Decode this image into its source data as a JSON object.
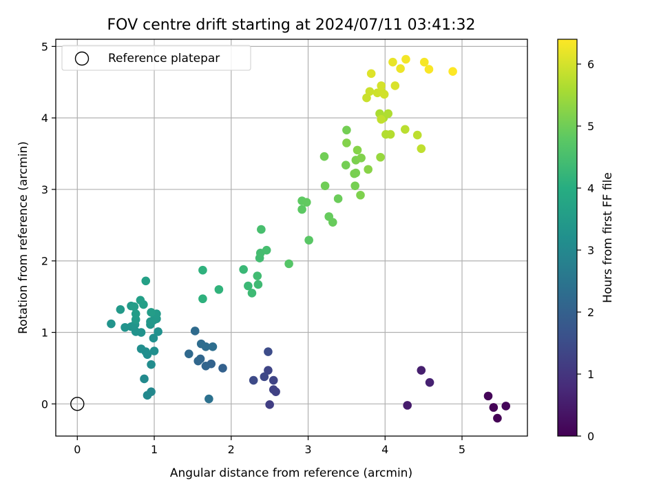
{
  "chart_data": {
    "type": "scatter",
    "title": "FOV centre drift starting at 2024/07/11 03:41:32",
    "xlabel": "Angular distance from reference (arcmin)",
    "ylabel": "Rotation from reference (arcmin)",
    "xlim": [
      -0.28,
      5.85
    ],
    "ylim": [
      -0.45,
      5.1
    ],
    "xticks": [
      0,
      1,
      2,
      3,
      4,
      5
    ],
    "yticks": [
      0,
      1,
      2,
      3,
      4,
      5
    ],
    "grid": true,
    "legend": {
      "placement": "top-left",
      "entries": [
        "Reference platepar"
      ]
    },
    "reference_point": {
      "x": 0,
      "y": 0,
      "label": "Reference platepar"
    },
    "colorbar": {
      "label": "Hours from first FF file",
      "colormap": "viridis",
      "range": [
        0,
        6.4
      ],
      "ticks": [
        0,
        1,
        2,
        3,
        4,
        5,
        6
      ]
    },
    "points": [
      {
        "x": 5.46,
        "y": -0.2,
        "c": 0.02
      },
      {
        "x": 5.41,
        "y": -0.05,
        "c": 0.05
      },
      {
        "x": 5.34,
        "y": 0.11,
        "c": 0.08
      },
      {
        "x": 5.57,
        "y": -0.03,
        "c": 0.1
      },
      {
        "x": 4.29,
        "y": -0.02,
        "c": 0.5
      },
      {
        "x": 4.47,
        "y": 0.47,
        "c": 0.55
      },
      {
        "x": 4.58,
        "y": 0.3,
        "c": 0.6
      },
      {
        "x": 2.5,
        "y": -0.01,
        "c": 1.2
      },
      {
        "x": 2.58,
        "y": 0.17,
        "c": 1.25
      },
      {
        "x": 2.55,
        "y": 0.2,
        "c": 1.28
      },
      {
        "x": 2.55,
        "y": 0.33,
        "c": 1.32
      },
      {
        "x": 2.48,
        "y": 0.47,
        "c": 1.35
      },
      {
        "x": 2.43,
        "y": 0.38,
        "c": 1.4
      },
      {
        "x": 2.29,
        "y": 0.33,
        "c": 1.45
      },
      {
        "x": 2.48,
        "y": 0.73,
        "c": 1.5
      },
      {
        "x": 1.89,
        "y": 0.5,
        "c": 2.0
      },
      {
        "x": 1.74,
        "y": 0.56,
        "c": 2.05
      },
      {
        "x": 1.67,
        "y": 0.53,
        "c": 2.1
      },
      {
        "x": 1.6,
        "y": 0.63,
        "c": 2.12
      },
      {
        "x": 1.57,
        "y": 0.6,
        "c": 2.15
      },
      {
        "x": 1.45,
        "y": 0.7,
        "c": 2.2
      },
      {
        "x": 1.53,
        "y": 1.02,
        "c": 2.25
      },
      {
        "x": 1.61,
        "y": 0.84,
        "c": 2.28
      },
      {
        "x": 1.67,
        "y": 0.8,
        "c": 2.3
      },
      {
        "x": 1.76,
        "y": 0.8,
        "c": 2.32
      },
      {
        "x": 1.71,
        "y": 0.07,
        "c": 2.4
      },
      {
        "x": 0.96,
        "y": 0.17,
        "c": 3.0
      },
      {
        "x": 0.91,
        "y": 0.12,
        "c": 3.02
      },
      {
        "x": 0.87,
        "y": 0.35,
        "c": 3.05
      },
      {
        "x": 0.96,
        "y": 0.55,
        "c": 3.1
      },
      {
        "x": 0.91,
        "y": 0.69,
        "c": 3.12
      },
      {
        "x": 0.89,
        "y": 0.73,
        "c": 3.14
      },
      {
        "x": 0.83,
        "y": 0.77,
        "c": 3.16
      },
      {
        "x": 1.0,
        "y": 0.74,
        "c": 3.18
      },
      {
        "x": 0.99,
        "y": 0.92,
        "c": 3.2
      },
      {
        "x": 1.05,
        "y": 1.01,
        "c": 3.22
      },
      {
        "x": 0.83,
        "y": 1.0,
        "c": 3.25
      },
      {
        "x": 0.76,
        "y": 1.01,
        "c": 3.27
      },
      {
        "x": 0.62,
        "y": 1.07,
        "c": 3.3
      },
      {
        "x": 0.7,
        "y": 1.08,
        "c": 3.32
      },
      {
        "x": 0.75,
        "y": 1.11,
        "c": 3.35
      },
      {
        "x": 0.95,
        "y": 1.11,
        "c": 3.37
      },
      {
        "x": 0.95,
        "y": 1.15,
        "c": 3.4
      },
      {
        "x": 0.99,
        "y": 1.17,
        "c": 3.42
      },
      {
        "x": 1.03,
        "y": 1.19,
        "c": 3.45
      },
      {
        "x": 1.03,
        "y": 1.26,
        "c": 3.47
      },
      {
        "x": 0.76,
        "y": 1.18,
        "c": 3.5
      },
      {
        "x": 0.76,
        "y": 1.26,
        "c": 3.52
      },
      {
        "x": 0.96,
        "y": 1.28,
        "c": 3.55
      },
      {
        "x": 0.44,
        "y": 1.12,
        "c": 3.3
      },
      {
        "x": 0.56,
        "y": 1.32,
        "c": 3.45
      },
      {
        "x": 0.7,
        "y": 1.37,
        "c": 3.5
      },
      {
        "x": 0.74,
        "y": 1.36,
        "c": 3.55
      },
      {
        "x": 0.82,
        "y": 1.45,
        "c": 3.6
      },
      {
        "x": 0.86,
        "y": 1.39,
        "c": 3.62
      },
      {
        "x": 0.89,
        "y": 1.72,
        "c": 3.65
      },
      {
        "x": 1.63,
        "y": 1.47,
        "c": 4.1
      },
      {
        "x": 1.63,
        "y": 1.87,
        "c": 4.12
      },
      {
        "x": 1.84,
        "y": 1.6,
        "c": 4.15
      },
      {
        "x": 2.16,
        "y": 1.88,
        "c": 4.3
      },
      {
        "x": 2.22,
        "y": 1.65,
        "c": 4.32
      },
      {
        "x": 2.27,
        "y": 1.55,
        "c": 4.35
      },
      {
        "x": 2.35,
        "y": 1.67,
        "c": 4.37
      },
      {
        "x": 2.34,
        "y": 1.79,
        "c": 4.4
      },
      {
        "x": 2.37,
        "y": 2.04,
        "c": 4.42
      },
      {
        "x": 2.38,
        "y": 2.11,
        "c": 4.45
      },
      {
        "x": 2.46,
        "y": 2.15,
        "c": 4.47
      },
      {
        "x": 2.39,
        "y": 2.44,
        "c": 4.5
      },
      {
        "x": 2.75,
        "y": 1.96,
        "c": 4.7
      },
      {
        "x": 3.01,
        "y": 2.29,
        "c": 4.75
      },
      {
        "x": 2.92,
        "y": 2.72,
        "c": 4.8
      },
      {
        "x": 2.92,
        "y": 2.84,
        "c": 4.82
      },
      {
        "x": 2.98,
        "y": 2.82,
        "c": 4.85
      },
      {
        "x": 3.27,
        "y": 2.62,
        "c": 4.9
      },
      {
        "x": 3.32,
        "y": 2.54,
        "c": 4.92
      },
      {
        "x": 3.39,
        "y": 2.87,
        "c": 4.95
      },
      {
        "x": 3.22,
        "y": 3.05,
        "c": 5.0
      },
      {
        "x": 3.21,
        "y": 3.46,
        "c": 5.02
      },
      {
        "x": 3.49,
        "y": 3.34,
        "c": 5.05
      },
      {
        "x": 3.61,
        "y": 3.05,
        "c": 5.07
      },
      {
        "x": 3.6,
        "y": 3.22,
        "c": 5.1
      },
      {
        "x": 3.62,
        "y": 3.41,
        "c": 5.12
      },
      {
        "x": 3.68,
        "y": 2.92,
        "c": 5.15
      },
      {
        "x": 3.69,
        "y": 3.44,
        "c": 5.17
      },
      {
        "x": 3.5,
        "y": 3.65,
        "c": 5.2
      },
      {
        "x": 3.64,
        "y": 3.55,
        "c": 5.22
      },
      {
        "x": 3.78,
        "y": 3.28,
        "c": 5.25
      },
      {
        "x": 3.62,
        "y": 3.23,
        "c": 5.1
      },
      {
        "x": 3.5,
        "y": 3.83,
        "c": 5.05
      },
      {
        "x": 3.94,
        "y": 3.45,
        "c": 5.4
      },
      {
        "x": 3.93,
        "y": 4.06,
        "c": 5.6
      },
      {
        "x": 3.98,
        "y": 4.0,
        "c": 5.62
      },
      {
        "x": 4.04,
        "y": 4.06,
        "c": 5.65
      },
      {
        "x": 4.01,
        "y": 3.77,
        "c": 5.68
      },
      {
        "x": 4.07,
        "y": 3.77,
        "c": 5.7
      },
      {
        "x": 4.26,
        "y": 3.84,
        "c": 5.75
      },
      {
        "x": 4.42,
        "y": 3.76,
        "c": 5.78
      },
      {
        "x": 4.47,
        "y": 3.57,
        "c": 5.8
      },
      {
        "x": 3.95,
        "y": 3.98,
        "c": 5.82
      },
      {
        "x": 3.76,
        "y": 4.28,
        "c": 5.9
      },
      {
        "x": 3.8,
        "y": 4.37,
        "c": 5.92
      },
      {
        "x": 3.9,
        "y": 4.35,
        "c": 5.94
      },
      {
        "x": 3.96,
        "y": 4.36,
        "c": 5.96
      },
      {
        "x": 3.99,
        "y": 4.33,
        "c": 5.98
      },
      {
        "x": 3.95,
        "y": 4.45,
        "c": 6.0
      },
      {
        "x": 4.13,
        "y": 4.45,
        "c": 6.05
      },
      {
        "x": 3.82,
        "y": 4.62,
        "c": 6.1
      },
      {
        "x": 4.1,
        "y": 4.78,
        "c": 6.2
      },
      {
        "x": 4.2,
        "y": 4.69,
        "c": 6.25
      },
      {
        "x": 4.27,
        "y": 4.82,
        "c": 6.3
      },
      {
        "x": 4.51,
        "y": 4.78,
        "c": 6.33
      },
      {
        "x": 4.57,
        "y": 4.68,
        "c": 6.36
      },
      {
        "x": 4.88,
        "y": 4.65,
        "c": 6.4
      }
    ]
  }
}
